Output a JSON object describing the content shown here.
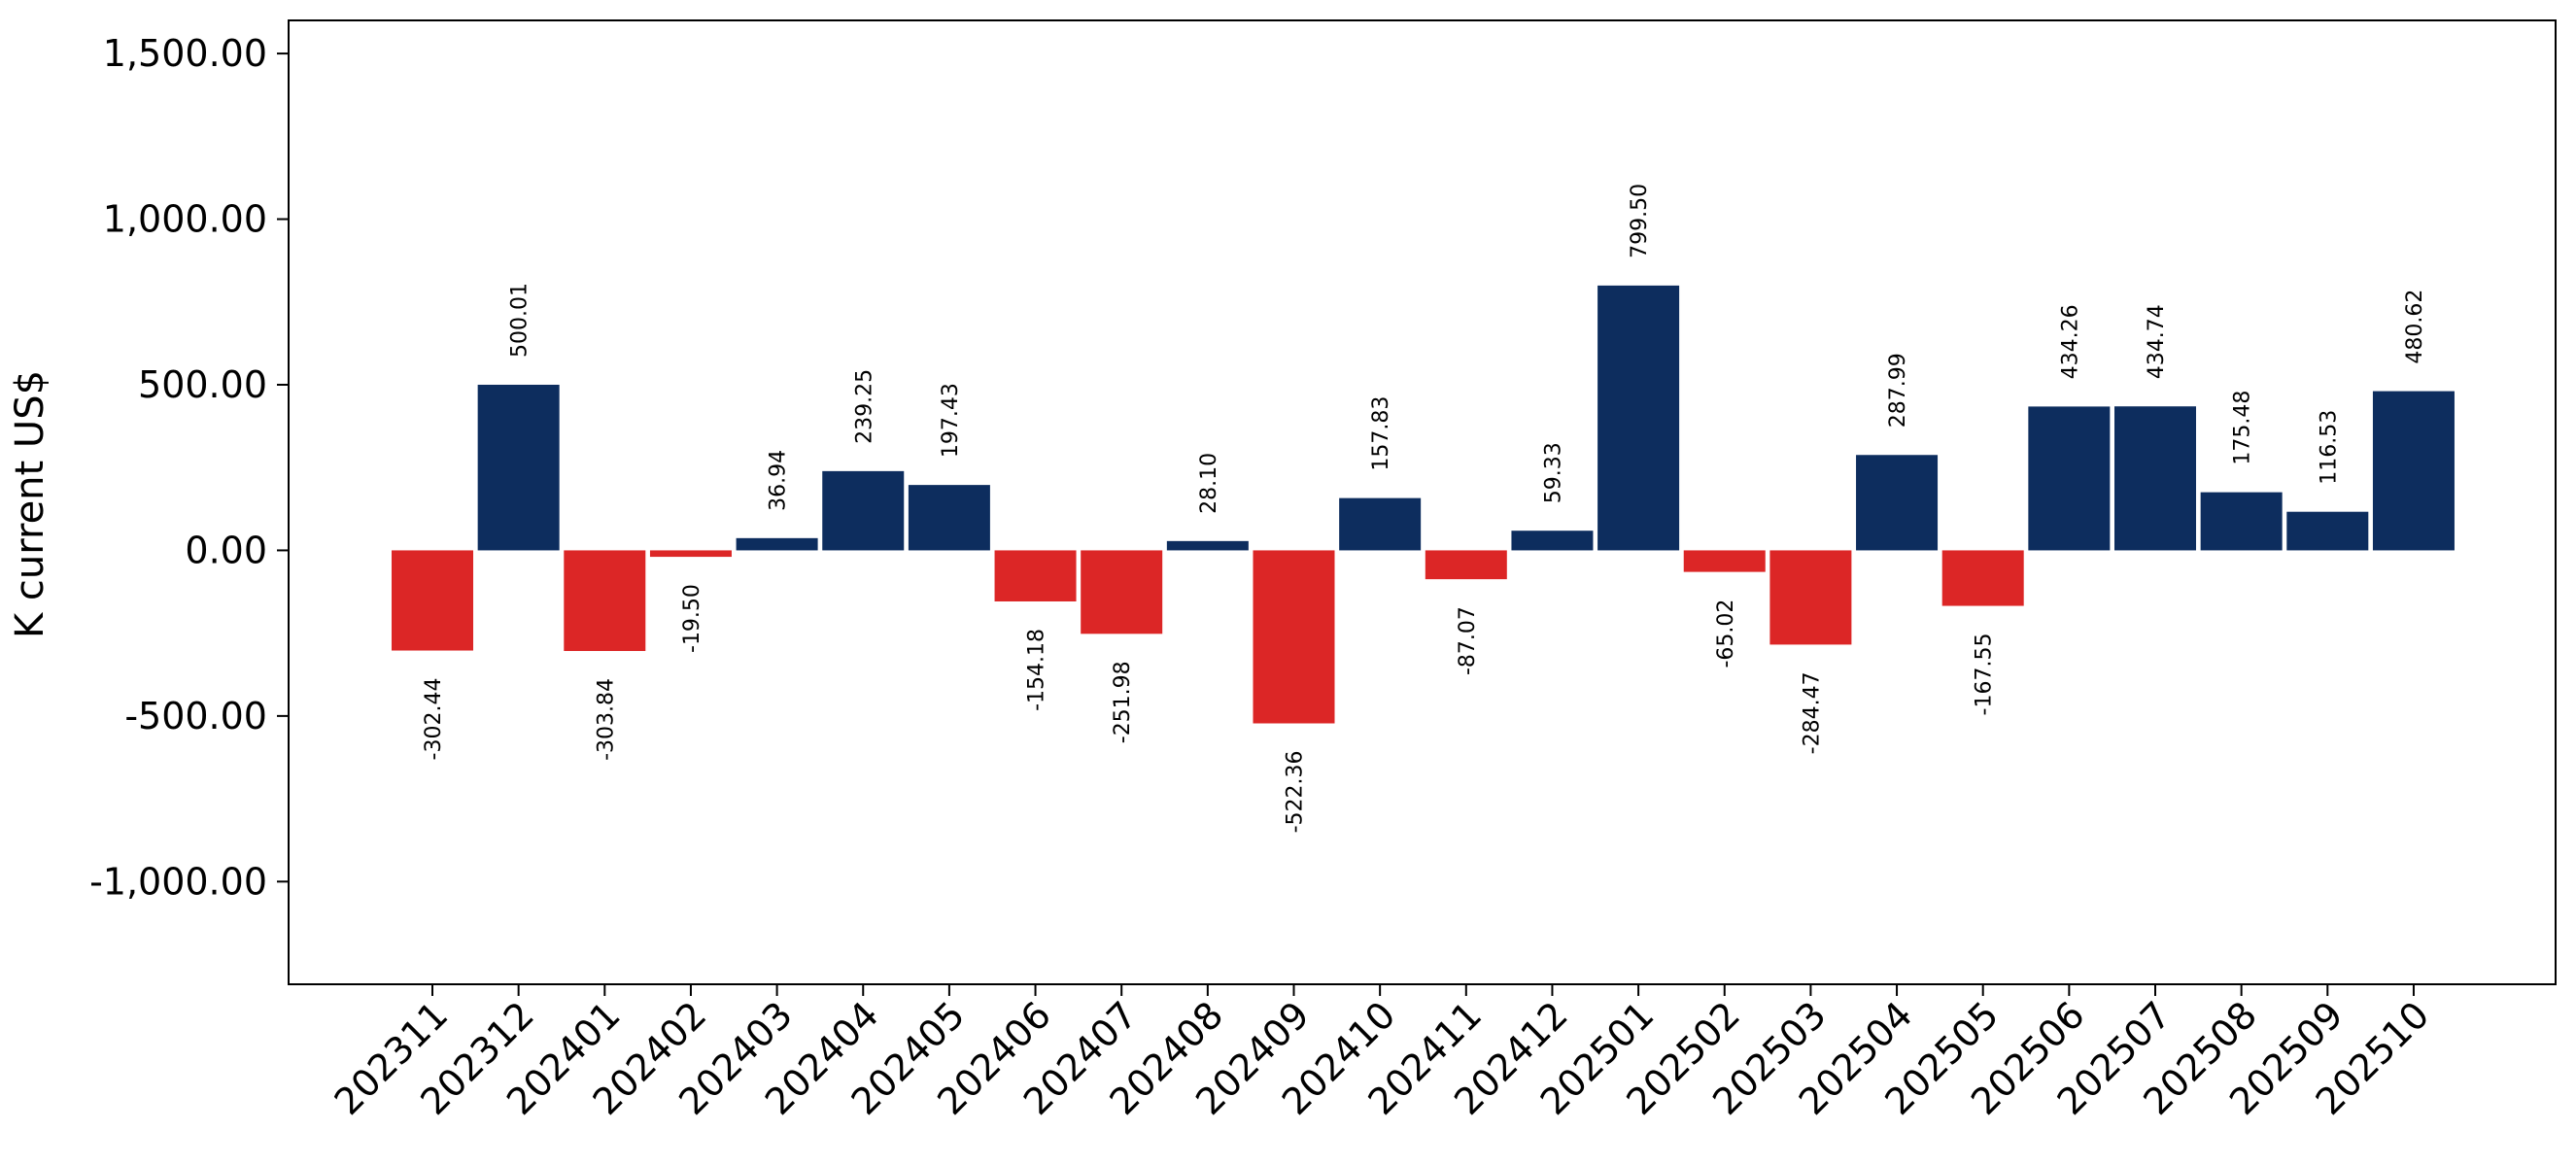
{
  "chart_data": {
    "type": "bar",
    "title": "",
    "xlabel": "",
    "ylabel": "K current US$",
    "ylim": [
      -1310,
      1600
    ],
    "yticks": [
      -1000,
      -500,
      0,
      500,
      1000,
      1500
    ],
    "ytick_labels": [
      "-1,000.00",
      "-500.00",
      "0.00",
      "500.00",
      "1,000.00",
      "1,500.00"
    ],
    "grid": false,
    "legend": "none",
    "colors": {
      "positive": "#0d2d5e",
      "negative": "#dc2626"
    },
    "categories": [
      "202311",
      "202312",
      "202401",
      "202402",
      "202403",
      "202404",
      "202405",
      "202406",
      "202407",
      "202408",
      "202409",
      "202410",
      "202411",
      "202412",
      "202501",
      "202502",
      "202503",
      "202504",
      "202505",
      "202506",
      "202507",
      "202508",
      "202509",
      "202510"
    ],
    "values": [
      -302.44,
      500.01,
      -303.84,
      -19.5,
      36.94,
      239.25,
      197.43,
      -154.18,
      -251.98,
      28.1,
      -522.36,
      157.83,
      -87.07,
      59.33,
      799.5,
      -65.02,
      -284.47,
      287.99,
      -167.55,
      434.26,
      434.74,
      175.48,
      116.53,
      480.62
    ],
    "value_labels": [
      "-302.44",
      "500.01",
      "-303.84",
      "-19.50",
      "36.94",
      "239.25",
      "197.43",
      "-154.18",
      "-251.98",
      "28.10",
      "-522.36",
      "157.83",
      "-87.07",
      "59.33",
      "799.50",
      "-65.02",
      "-284.47",
      "287.99",
      "-167.55",
      "434.26",
      "434.74",
      "175.48",
      "116.53",
      "480.62"
    ]
  }
}
